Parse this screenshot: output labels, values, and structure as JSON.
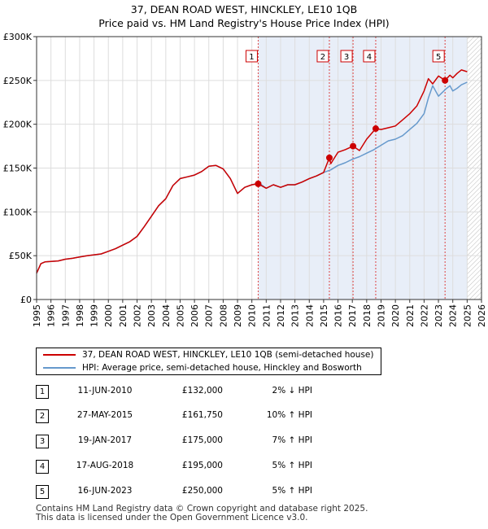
{
  "chart_data": {
    "type": "line",
    "title": "37, DEAN ROAD WEST, HINCKLEY, LE10 1QB",
    "subtitle": "Price paid vs. HM Land Registry's House Price Index (HPI)",
    "xlim": [
      1995,
      2026
    ],
    "ylim": [
      0,
      300000
    ],
    "x_ticks": [
      "1995",
      "1996",
      "1997",
      "1998",
      "1999",
      "2000",
      "2001",
      "2002",
      "2003",
      "2004",
      "2005",
      "2006",
      "2007",
      "2008",
      "2009",
      "2010",
      "2011",
      "2012",
      "2013",
      "2014",
      "2015",
      "2016",
      "2017",
      "2018",
      "2019",
      "2020",
      "2021",
      "2022",
      "2023",
      "2024",
      "2025",
      "2026"
    ],
    "y_ticks": [
      {
        "value": 0,
        "label": "£0"
      },
      {
        "value": 50000,
        "label": "£50K"
      },
      {
        "value": 100000,
        "label": "£100K"
      },
      {
        "value": 150000,
        "label": "£150K"
      },
      {
        "value": 200000,
        "label": "£200K"
      },
      {
        "value": 250000,
        "label": "£250K"
      },
      {
        "value": 300000,
        "label": "£300K"
      }
    ],
    "grid": true,
    "shaded_region": [
      2010.44,
      2025.0
    ],
    "hatched_after": 2025.0,
    "series": [
      {
        "name": "37, DEAN ROAD WEST, HINCKLEY, LE10 1QB (semi-detached house)",
        "color": "#cc0000",
        "x": [
          1995.0,
          1995.3,
          1995.6,
          1996.0,
          1996.5,
          1997.0,
          1997.5,
          1998.0,
          1998.5,
          1999.0,
          1999.5,
          2000.0,
          2000.5,
          2001.0,
          2001.5,
          2002.0,
          2002.5,
          2003.0,
          2003.5,
          2004.0,
          2004.5,
          2005.0,
          2005.5,
          2006.0,
          2006.5,
          2007.0,
          2007.5,
          2008.0,
          2008.5,
          2009.0,
          2009.5,
          2010.0,
          2010.44,
          2011.0,
          2011.5,
          2012.0,
          2012.5,
          2013.0,
          2013.5,
          2014.0,
          2014.5,
          2015.0,
          2015.4,
          2015.5,
          2016.0,
          2016.5,
          2017.05,
          2017.5,
          2018.0,
          2018.63,
          2019.0,
          2019.5,
          2020.0,
          2020.5,
          2021.0,
          2021.5,
          2022.0,
          2022.3,
          2022.6,
          2023.0,
          2023.46,
          2023.8,
          2024.0,
          2024.3,
          2024.6,
          2025.0
        ],
        "y": [
          30000,
          41000,
          43000,
          43500,
          44000,
          46000,
          47000,
          48500,
          50000,
          51000,
          52000,
          55000,
          58000,
          62000,
          66000,
          72000,
          83000,
          95000,
          107000,
          115000,
          130000,
          138000,
          140000,
          142000,
          146000,
          152000,
          153000,
          149000,
          138000,
          121000,
          128000,
          131000,
          132000,
          127000,
          131000,
          128000,
          131000,
          131000,
          134000,
          138000,
          141000,
          145000,
          161750,
          155000,
          168000,
          171000,
          175000,
          170000,
          183000,
          195000,
          194000,
          196000,
          198000,
          205000,
          212000,
          221000,
          238000,
          252000,
          246000,
          255000,
          250000,
          256000,
          253000,
          258000,
          262000,
          260000
        ]
      },
      {
        "name": "HPI: Average price, semi-detached house, Hinckley and Bosworth",
        "color": "#6699cc",
        "x": [
          1995.0,
          1995.3,
          1995.6,
          1996.0,
          1996.5,
          1997.0,
          1997.5,
          1998.0,
          1998.5,
          1999.0,
          1999.5,
          2000.0,
          2000.5,
          2001.0,
          2001.5,
          2002.0,
          2002.5,
          2003.0,
          2003.5,
          2004.0,
          2004.5,
          2005.0,
          2005.5,
          2006.0,
          2006.5,
          2007.0,
          2007.5,
          2008.0,
          2008.5,
          2009.0,
          2009.5,
          2010.0,
          2010.5,
          2011.0,
          2011.5,
          2012.0,
          2012.5,
          2013.0,
          2013.5,
          2014.0,
          2014.5,
          2015.0,
          2015.5,
          2016.0,
          2016.5,
          2017.0,
          2017.5,
          2018.0,
          2018.5,
          2019.0,
          2019.5,
          2020.0,
          2020.5,
          2021.0,
          2021.5,
          2022.0,
          2022.3,
          2022.6,
          2023.0,
          2023.5,
          2023.8,
          2024.0,
          2024.3,
          2024.6,
          2025.0
        ],
        "y": [
          30000,
          41000,
          43000,
          43500,
          44000,
          46000,
          47000,
          48500,
          50000,
          51000,
          52000,
          55000,
          58000,
          62000,
          66000,
          72000,
          83000,
          95000,
          107000,
          115000,
          130000,
          138000,
          140000,
          142000,
          146000,
          152000,
          153000,
          149000,
          138000,
          121000,
          128000,
          131000,
          133000,
          127000,
          131000,
          128000,
          131000,
          131000,
          134000,
          138000,
          141000,
          145000,
          148000,
          153000,
          156000,
          160000,
          163000,
          167000,
          171000,
          176000,
          181000,
          183000,
          187000,
          194000,
          201000,
          212000,
          230000,
          244000,
          232000,
          240000,
          244000,
          238000,
          241000,
          245000,
          248000
        ]
      }
    ],
    "sales": [
      {
        "num": "1",
        "x": 2010.44,
        "y": 132000
      },
      {
        "num": "2",
        "x": 2015.4,
        "y": 161750
      },
      {
        "num": "3",
        "x": 2017.05,
        "y": 175000
      },
      {
        "num": "4",
        "x": 2018.63,
        "y": 195000
      },
      {
        "num": "5",
        "x": 2023.46,
        "y": 250000
      }
    ]
  },
  "legend": {
    "property_label": "37, DEAN ROAD WEST, HINCKLEY, LE10 1QB (semi-detached house)",
    "hpi_label": "HPI: Average price, semi-detached house, Hinckley and Bosworth"
  },
  "transactions": [
    {
      "num": "1",
      "date": "11-JUN-2010",
      "price": "£132,000",
      "hpi": "2% ↓ HPI"
    },
    {
      "num": "2",
      "date": "27-MAY-2015",
      "price": "£161,750",
      "hpi": "10% ↑ HPI"
    },
    {
      "num": "3",
      "date": "19-JAN-2017",
      "price": "£175,000",
      "hpi": "7% ↑ HPI"
    },
    {
      "num": "4",
      "date": "17-AUG-2018",
      "price": "£195,000",
      "hpi": "5% ↑ HPI"
    },
    {
      "num": "5",
      "date": "16-JUN-2023",
      "price": "£250,000",
      "hpi": "5% ↑ HPI"
    }
  ],
  "footer": {
    "line1": "Contains HM Land Registry data © Crown copyright and database right 2025.",
    "line2": "This data is licensed under the Open Government Licence v3.0."
  }
}
